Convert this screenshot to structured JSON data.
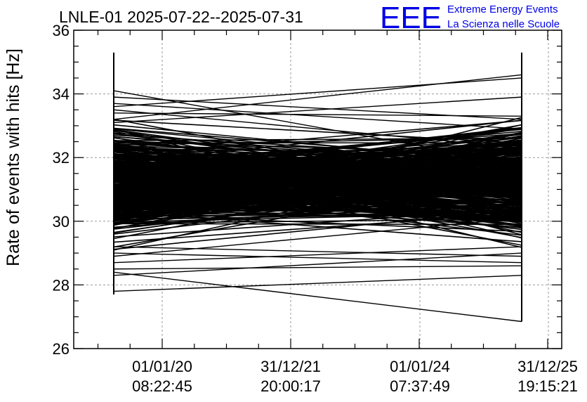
{
  "chart_data": {
    "type": "line",
    "title": "LNLE-01 2025-07-22--2025-07-31",
    "xlabel": "",
    "ylabel": "Rate of events with hits [Hz]",
    "ylim": [
      26,
      36
    ],
    "yticks": [
      26,
      28,
      30,
      32,
      34,
      36
    ],
    "yminor_step": 0.5,
    "x_ticks": [
      {
        "date": "01/01/20",
        "time": "08:22:45"
      },
      {
        "date": "31/12/21",
        "time": "20:00:17"
      },
      {
        "date": "01/01/24",
        "time": "07:37:49"
      },
      {
        "date": "31/12/25",
        "time": "19:15:21"
      }
    ],
    "x_data_start": "2025-07-22",
    "x_data_end": "2025-07-31",
    "grid": true,
    "line_color": "#000000",
    "series_summary": {
      "start_min": 27.7,
      "start_max": 35.3,
      "end_min": 26.85,
      "end_max": 35.3,
      "dense_band_low": 28.8,
      "dense_band_high": 33.6
    },
    "segments": [
      [
        34.1,
        31.8
      ],
      [
        27.8,
        28.3
      ],
      [
        28.3,
        29.0
      ],
      [
        28.5,
        28.6
      ],
      [
        33.7,
        32.9
      ],
      [
        33.4,
        33.3
      ],
      [
        33.6,
        34.5
      ],
      [
        33.1,
        33.9
      ],
      [
        28.4,
        26.85
      ],
      [
        29.0,
        28.7
      ],
      [
        33.9,
        33.2
      ],
      [
        28.7,
        29.2
      ],
      [
        33.5,
        32.3
      ],
      [
        28.9,
        30.1
      ],
      [
        29.2,
        28.9
      ],
      [
        33.2,
        34.6
      ],
      [
        32.9,
        31.7
      ]
    ]
  },
  "logo": {
    "mark": "EEE",
    "line1": "Extreme Energy Events",
    "line2": "La Scienza nelle Scuole",
    "color": "#0000e6"
  }
}
